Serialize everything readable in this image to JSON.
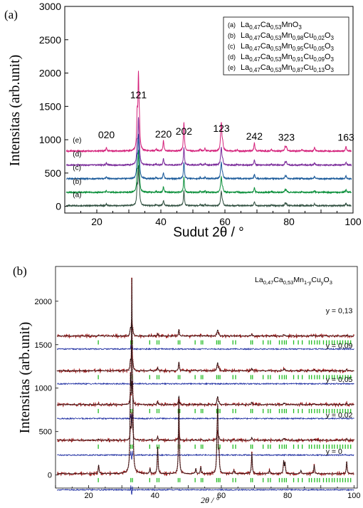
{
  "chart_data": [
    {
      "panel_label": "(a)",
      "type": "line",
      "xlabel": "Sudut 2θ / °",
      "ylabel": "Intensitas (arb.unit)",
      "xlim": [
        10,
        100
      ],
      "ylim": [
        -100,
        3000
      ],
      "xticks": [
        20,
        40,
        60,
        80,
        100
      ],
      "yticks": [
        0,
        500,
        1000,
        1500,
        2000,
        2500,
        3000
      ],
      "legend_position": "top-right",
      "legend": [
        {
          "key": "(a)",
          "formula": "La0,47Ca0,53MnO3"
        },
        {
          "key": "(b)",
          "formula": "La0,47Ca0,53Mn0,98Cu0,02O3"
        },
        {
          "key": "(c)",
          "formula": "La0,47Ca0,53Mn0,95Cu0,05O3"
        },
        {
          "key": "(d)",
          "formula": "La0,47Ca0,53Mn0,91Cu0,09O3"
        },
        {
          "key": "(e)",
          "formula": "La0,47Ca0,53Mn0,87Cu0,13O3"
        }
      ],
      "peak_labels": [
        {
          "hkl": "020",
          "x": 23.0
        },
        {
          "hkl": "121",
          "x": 33.0
        },
        {
          "hkl": "220",
          "x": 40.8
        },
        {
          "hkl": "202",
          "x": 47.2
        },
        {
          "hkl": "123",
          "x": 58.9
        },
        {
          "hkl": "242",
          "x": 69.2
        },
        {
          "hkl": "323",
          "x": 79.2
        },
        {
          "hkl": "163",
          "x": 97.8
        }
      ],
      "series": [
        {
          "name": "(a)",
          "color": "#2f4f3f",
          "offset": 10,
          "peak_scale": 0.3
        },
        {
          "name": "(b)",
          "color": "#0a8f3a",
          "offset": 210,
          "peak_scale": 0.32
        },
        {
          "name": "(c)",
          "color": "#1a5a9a",
          "offset": 415,
          "peak_scale": 0.34
        },
        {
          "name": "(d)",
          "color": "#7a2a9a",
          "offset": 620,
          "peak_scale": 0.36
        },
        {
          "name": "(e)",
          "color": "#d4207a",
          "offset": 830,
          "peak_scale": 0.6
        }
      ]
    },
    {
      "panel_label": "(b)",
      "type": "line",
      "annotation": "La0,47Ca0,53Mn1-yCuyO3",
      "xlabel": "2θ / °",
      "ylabel": "Intensitas (arb.unit)",
      "xlim": [
        10,
        101
      ],
      "ylim": [
        -150,
        2400
      ],
      "xticks": [
        20,
        40,
        60,
        80,
        100
      ],
      "yticks": [
        0,
        500,
        1000,
        1500,
        2000
      ],
      "series_labels": [
        "y = 0,13",
        "y = 0,09",
        "y = 0,05",
        "y = 0,02",
        "y = 0"
      ],
      "groups": [
        {
          "label": "y = 0,13",
          "fit_baseline": 1600,
          "diff_baseline": 1450,
          "peak_scale": 0.09
        },
        {
          "label": "y = 0,09",
          "fit_baseline": 1200,
          "diff_baseline": 1050,
          "peak_scale": 0.12
        },
        {
          "label": "y = 0,05",
          "fit_baseline": 810,
          "diff_baseline": 650,
          "peak_scale": 0.12
        },
        {
          "label": "y = 0,02",
          "fit_baseline": 400,
          "diff_baseline": 230,
          "peak_scale": 0.14
        },
        {
          "label": "y = 0",
          "fit_baseline": 15,
          "diff_baseline": -170,
          "peak_scale": 1.0
        }
      ],
      "colors": {
        "observed": "#a01818",
        "calculated": "#111111",
        "difference": "#1a2aa0",
        "bragg": "#22bb22"
      }
    }
  ]
}
